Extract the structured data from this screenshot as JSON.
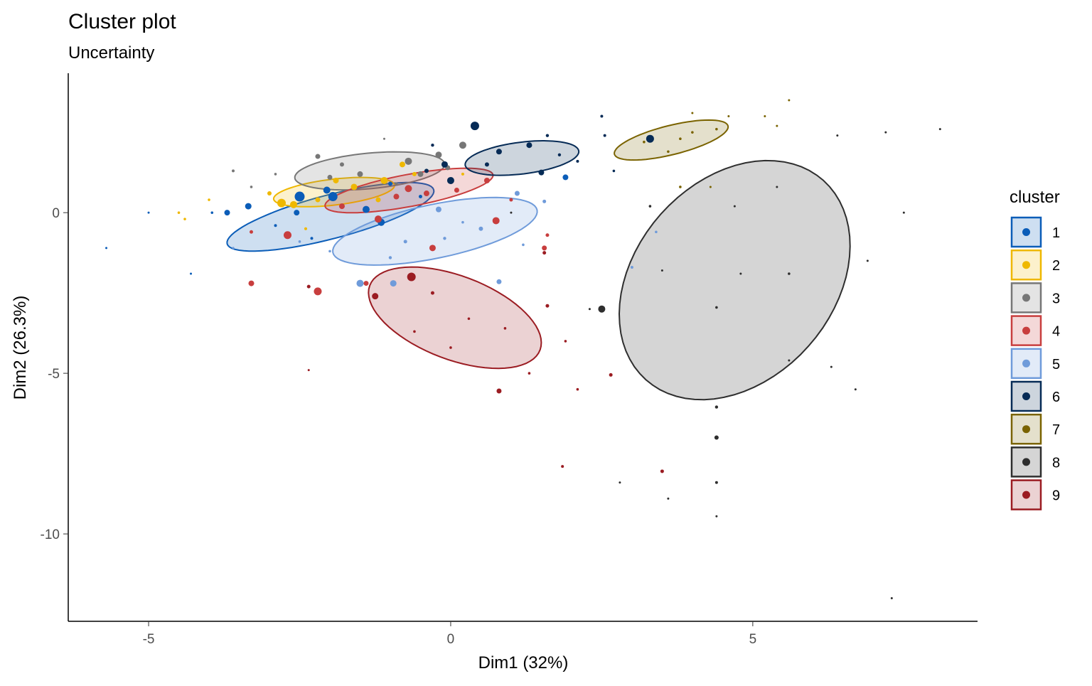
{
  "chart_data": {
    "type": "scatter",
    "title": "Cluster plot",
    "subtitle": "Uncertainty",
    "xlabel": "Dim1 (32%)",
    "ylabel": "Dim2 (26.3%)",
    "xlim": [
      -6.33,
      8.72
    ],
    "ylim": [
      -12.72,
      4.34
    ],
    "xticks": [
      -5,
      0,
      5
    ],
    "yticks": [
      0,
      -5,
      -10
    ],
    "grid": false,
    "legend": {
      "title": "cluster",
      "position": "right"
    },
    "point_size_variable": "uncertainty (0-1)",
    "clusters": [
      {
        "name": "1",
        "color": "#0B5DB8",
        "ellipse": {
          "center": [
            -1.99,
            -0.13
          ],
          "axis1": [
            1.71,
            0.84
          ],
          "axis2": [
            0.09,
            -0.66
          ]
        },
        "points": [
          [
            -3.7,
            0.0,
            0.3
          ],
          [
            -3.35,
            0.2,
            0.35
          ],
          [
            -2.5,
            0.5,
            0.6
          ],
          [
            -2.05,
            0.7,
            0.4
          ],
          [
            -1.95,
            0.5,
            0.55
          ],
          [
            -1.4,
            0.1,
            0.4
          ],
          [
            -1.15,
            -0.3,
            0.4
          ],
          [
            -2.55,
            0.0,
            0.3
          ],
          [
            -5.0,
            0.0,
            0.05
          ],
          [
            -5.7,
            -1.1,
            0.05
          ],
          [
            -4.3,
            -1.9,
            0.05
          ],
          [
            -3.95,
            0.0,
            0.08
          ],
          [
            -2.9,
            -0.4,
            0.1
          ],
          [
            -0.5,
            0.5,
            0.15
          ],
          [
            1.9,
            1.1,
            0.3
          ],
          [
            -1.0,
            0.9,
            0.2
          ],
          [
            -2.3,
            -0.8,
            0.1
          ]
        ]
      },
      {
        "name": "2",
        "color": "#EFB800",
        "ellipse": {
          "center": [
            -1.93,
            0.64
          ],
          "axis1": [
            1.0,
            0.22
          ],
          "axis2": [
            0.03,
            -0.4
          ]
        },
        "points": [
          [
            -2.8,
            0.3,
            0.5
          ],
          [
            -2.6,
            0.25,
            0.4
          ],
          [
            -1.6,
            0.8,
            0.35
          ],
          [
            -1.1,
            1.0,
            0.4
          ],
          [
            -0.8,
            1.5,
            0.3
          ],
          [
            -4.5,
            0.0,
            0.08
          ],
          [
            -4.4,
            -0.2,
            0.08
          ],
          [
            -4.0,
            0.4,
            0.08
          ],
          [
            -2.2,
            0.4,
            0.25
          ],
          [
            -1.9,
            1.0,
            0.3
          ],
          [
            -0.6,
            1.2,
            0.2
          ],
          [
            -3.0,
            0.6,
            0.2
          ],
          [
            -2.4,
            -0.5,
            0.1
          ],
          [
            -1.2,
            0.4,
            0.25
          ],
          [
            0.2,
            1.2,
            0.1
          ]
        ]
      },
      {
        "name": "3",
        "color": "#777777",
        "ellipse": {
          "center": [
            -1.34,
            1.3
          ],
          "axis1": [
            1.24,
            0.22
          ],
          "axis2": [
            0.035,
            -0.55
          ]
        },
        "points": [
          [
            -2.2,
            1.75,
            0.25
          ],
          [
            -1.5,
            1.2,
            0.3
          ],
          [
            -0.7,
            1.6,
            0.4
          ],
          [
            -0.5,
            1.2,
            0.3
          ],
          [
            -0.2,
            1.8,
            0.35
          ],
          [
            -3.6,
            1.3,
            0.1
          ],
          [
            -2.9,
            1.2,
            0.08
          ],
          [
            -1.1,
            2.3,
            0.05
          ],
          [
            0.2,
            2.1,
            0.4
          ],
          [
            -0.05,
            1.4,
            0.25
          ],
          [
            -2.0,
            1.1,
            0.25
          ],
          [
            -1.8,
            1.5,
            0.2
          ],
          [
            -0.9,
            0.9,
            0.1
          ],
          [
            -3.3,
            0.8,
            0.08
          ]
        ]
      },
      {
        "name": "4",
        "color": "#C83E3E",
        "ellipse": {
          "center": [
            -0.69,
            0.69
          ],
          "axis1": [
            1.39,
            0.49
          ],
          "axis2": [
            0.05,
            -0.49
          ]
        },
        "points": [
          [
            -0.7,
            0.75,
            0.4
          ],
          [
            -0.4,
            0.6,
            0.3
          ],
          [
            -1.2,
            -0.2,
            0.4
          ],
          [
            -0.9,
            0.5,
            0.3
          ],
          [
            0.75,
            -0.25,
            0.4
          ],
          [
            -2.7,
            -0.7,
            0.45
          ],
          [
            -3.3,
            -2.2,
            0.3
          ],
          [
            -2.2,
            -2.45,
            0.45
          ],
          [
            -1.4,
            -2.2,
            0.25
          ],
          [
            1.6,
            -0.7,
            0.15
          ],
          [
            1.55,
            -1.1,
            0.25
          ],
          [
            -1.8,
            0.2,
            0.3
          ],
          [
            0.6,
            1.0,
            0.3
          ],
          [
            -3.3,
            -0.6,
            0.15
          ],
          [
            0.1,
            0.7,
            0.25
          ],
          [
            -0.3,
            -1.1,
            0.35
          ],
          [
            1.0,
            0.4,
            0.15
          ]
        ]
      },
      {
        "name": "5",
        "color": "#6F9BDA",
        "ellipse": {
          "center": [
            -0.26,
            -0.58
          ],
          "axis1": [
            1.69,
            0.66
          ],
          "axis2": [
            0.09,
            -0.82
          ]
        },
        "points": [
          [
            -1.5,
            -2.2,
            0.4
          ],
          [
            -0.95,
            -2.2,
            0.35
          ],
          [
            0.8,
            -2.15,
            0.25
          ],
          [
            -0.2,
            0.1,
            0.3
          ],
          [
            -0.75,
            -0.9,
            0.15
          ],
          [
            0.5,
            -0.5,
            0.2
          ],
          [
            1.1,
            0.6,
            0.25
          ],
          [
            1.55,
            0.35,
            0.15
          ],
          [
            3.0,
            -1.7,
            0.1
          ],
          [
            3.4,
            -0.6,
            0.08
          ],
          [
            -2.0,
            -1.2,
            0.08
          ],
          [
            -1.0,
            -1.4,
            0.12
          ],
          [
            0.2,
            -0.3,
            0.08
          ],
          [
            -0.1,
            -0.8,
            0.12
          ],
          [
            1.2,
            -1.0,
            0.08
          ],
          [
            -2.5,
            -0.9,
            0.08
          ],
          [
            -3.6,
            -1.1,
            0.06
          ]
        ]
      },
      {
        "name": "6",
        "color": "#062B56",
        "ellipse": {
          "center": [
            1.18,
            1.7
          ],
          "axis1": [
            0.94,
            0.22
          ],
          "axis2": [
            0.035,
            -0.49
          ]
        },
        "points": [
          [
            0.4,
            2.7,
            0.5
          ],
          [
            0.8,
            1.9,
            0.3
          ],
          [
            1.3,
            2.1,
            0.3
          ],
          [
            -0.1,
            1.5,
            0.35
          ],
          [
            0.0,
            1.0,
            0.4
          ],
          [
            1.5,
            1.25,
            0.3
          ],
          [
            2.5,
            3.0,
            0.1
          ],
          [
            2.55,
            2.4,
            0.1
          ],
          [
            3.3,
            2.3,
            0.45
          ],
          [
            1.8,
            1.8,
            0.12
          ],
          [
            1.6,
            2.4,
            0.12
          ],
          [
            0.6,
            1.5,
            0.2
          ],
          [
            -0.4,
            1.3,
            0.2
          ],
          [
            2.1,
            1.6,
            0.1
          ],
          [
            2.7,
            1.3,
            0.08
          ],
          [
            -0.3,
            2.1,
            0.12
          ]
        ]
      },
      {
        "name": "7",
        "color": "#7A6300",
        "ellipse": {
          "center": [
            3.65,
            2.26
          ],
          "axis1": [
            0.94,
            0.44
          ],
          "axis2": [
            0.06,
            -0.44
          ]
        },
        "points": [
          [
            3.8,
            2.3,
            0.08
          ],
          [
            4.0,
            2.5,
            0.08
          ],
          [
            4.4,
            2.6,
            0.08
          ],
          [
            3.2,
            2.2,
            0.08
          ],
          [
            5.6,
            3.5,
            0.05
          ],
          [
            5.2,
            3.0,
            0.05
          ],
          [
            5.4,
            2.7,
            0.05
          ],
          [
            4.0,
            3.1,
            0.05
          ],
          [
            3.6,
            1.9,
            0.08
          ],
          [
            4.3,
            0.8,
            0.05
          ],
          [
            3.8,
            0.8,
            0.08
          ],
          [
            4.6,
            3.0,
            0.05
          ]
        ]
      },
      {
        "name": "8",
        "color": "#2E2E2E",
        "ellipse": {
          "center": [
            4.7,
            -2.1
          ],
          "axis1": [
            1.47,
            3.1
          ],
          "axis2": [
            1.22,
            -2.06
          ]
        },
        "points": [
          [
            2.5,
            -3.0,
            0.4
          ],
          [
            4.4,
            -6.05,
            0.12
          ],
          [
            4.4,
            -7.0,
            0.2
          ],
          [
            4.4,
            -8.4,
            0.1
          ],
          [
            4.4,
            -9.45,
            0.05
          ],
          [
            3.6,
            -8.9,
            0.05
          ],
          [
            7.3,
            -12.0,
            0.05
          ],
          [
            4.4,
            -2.95,
            0.08
          ],
          [
            5.6,
            -1.9,
            0.08
          ],
          [
            6.3,
            -4.8,
            0.05
          ],
          [
            6.7,
            -5.5,
            0.05
          ],
          [
            3.3,
            0.2,
            0.08
          ],
          [
            7.2,
            2.5,
            0.05
          ],
          [
            8.1,
            2.6,
            0.05
          ],
          [
            6.4,
            2.4,
            0.05
          ],
          [
            7.5,
            0.0,
            0.05
          ],
          [
            6.9,
            -1.5,
            0.05
          ],
          [
            4.8,
            -1.9,
            0.05
          ],
          [
            5.6,
            -4.6,
            0.05
          ],
          [
            3.5,
            -1.8,
            0.05
          ],
          [
            4.7,
            0.2,
            0.05
          ],
          [
            2.8,
            -8.4,
            0.05
          ],
          [
            5.4,
            0.8,
            0.05
          ],
          [
            1.0,
            0.0,
            0.05
          ],
          [
            2.3,
            -3.0,
            0.05
          ]
        ]
      },
      {
        "name": "9",
        "color": "#9B1C22",
        "ellipse": {
          "center": [
            0.07,
            -3.27
          ],
          "axis1": [
            1.41,
            -1.0
          ],
          "axis2": [
            -0.24,
            -1.22
          ]
        },
        "points": [
          [
            -0.65,
            -2.0,
            0.5
          ],
          [
            -1.25,
            -2.6,
            0.35
          ],
          [
            -0.3,
            -2.5,
            0.15
          ],
          [
            0.8,
            -5.55,
            0.25
          ],
          [
            3.5,
            -8.05,
            0.15
          ],
          [
            1.85,
            -7.9,
            0.1
          ],
          [
            2.65,
            -5.05,
            0.15
          ],
          [
            1.6,
            -2.9,
            0.15
          ],
          [
            1.9,
            -4.0,
            0.08
          ],
          [
            0.3,
            -3.3,
            0.08
          ],
          [
            -0.6,
            -3.7,
            0.08
          ],
          [
            0.9,
            -3.6,
            0.08
          ],
          [
            -2.35,
            -2.3,
            0.15
          ],
          [
            -2.35,
            -4.9,
            0.05
          ],
          [
            1.3,
            -5.0,
            0.08
          ],
          [
            2.1,
            -5.5,
            0.08
          ],
          [
            1.55,
            -1.25,
            0.15
          ],
          [
            0.0,
            -4.2,
            0.08
          ]
        ]
      }
    ]
  }
}
